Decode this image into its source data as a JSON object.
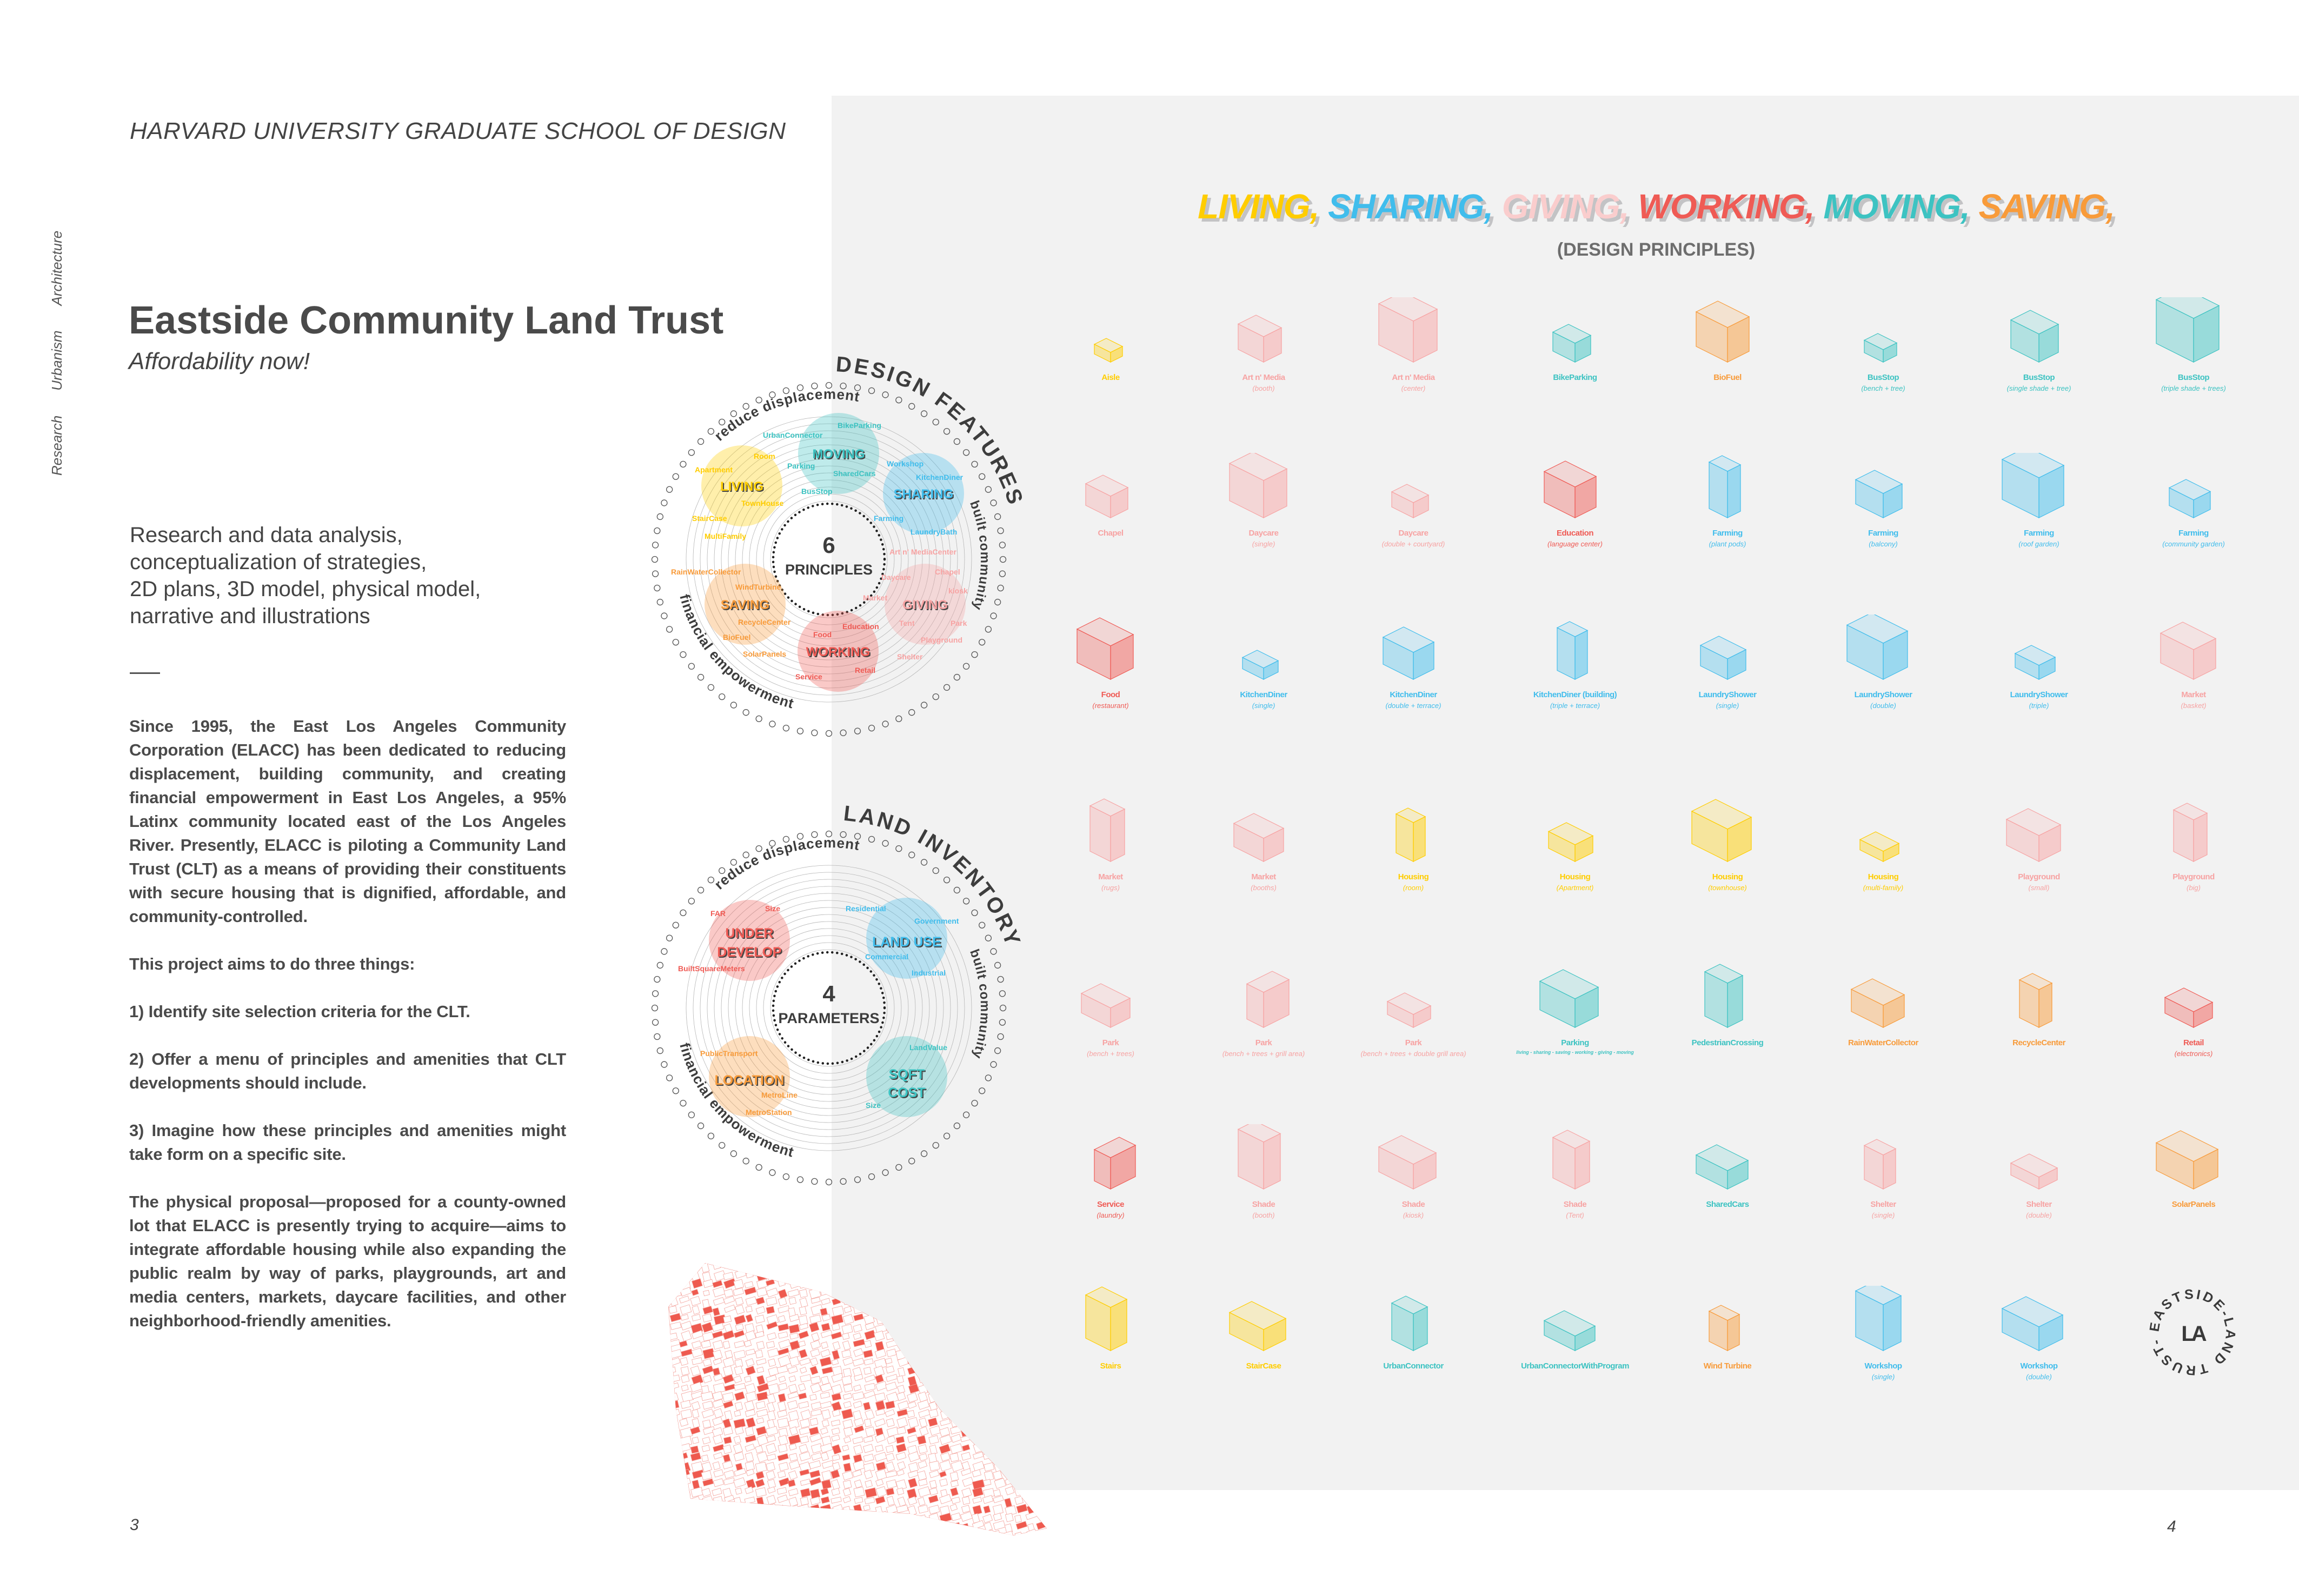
{
  "header": {
    "school": "HARVARD UNIVERSITY GRADUATE SCHOOL OF DESIGN"
  },
  "side_tags": [
    "Research",
    "Urbanism",
    "Architecture"
  ],
  "project": {
    "title": "Eastside Community Land Trust",
    "subtitle": "Affordability now!"
  },
  "services": [
    "Research and data analysis,",
    "conceptualization of strategies,",
    "2D plans, 3D model, physical model,",
    "narrative and illustrations"
  ],
  "body": [
    "Since 1995, the East Los Angeles Community Corporation (ELACC) has been dedicated to reducing displacement, building community, and creating financial empowerment in East Los Angeles, a 95% Latinx community located east of the Los Angeles River. Presently, ELACC is piloting a Community Land Trust (CLT) as a means of providing their constituents with secure housing that is dignified, affordable, and community-controlled.",
    "This project aims to do three things:",
    "1) Identify site selection criteria for the CLT.",
    "2) Offer a menu of principles and amenities that CLT developments should include.",
    "3) Imagine how these principles and amenities might take form on a specific site.",
    "The physical proposal—proposed for a county-owned lot that ELACC is presently trying to acquire—aims to integrate affordable housing while also expanding the public realm by way of parks, playgrounds, art and media centers, markets, daycare facilities, and other neighborhood-friendly amenities."
  ],
  "page_numbers": {
    "left": "3",
    "right": "4"
  },
  "colors": {
    "living": "#FFCD00",
    "sharing": "#41BDEC",
    "giving": "#F7A3A3",
    "giving_title": "#FACDCD",
    "working": "#EF5B55",
    "moving": "#3DC3C2",
    "saving": "#F89B3A",
    "text": "#4a4a4a",
    "panel": "#f2f2f2"
  },
  "principles_title": {
    "words": [
      "LIVING,",
      "SHARING,",
      "GIVING,",
      "WORKING,",
      "MOVING,",
      "SAVING,"
    ],
    "keys": [
      "living",
      "sharing",
      "giving_title",
      "working",
      "moving",
      "saving"
    ],
    "subtitle": "(DESIGN PRINCIPLES)"
  },
  "design_features": {
    "title": "DESIGN FEATURES",
    "count": "6",
    "count_label": "PRINCIPLES",
    "arcs": {
      "top": "reduce displacement",
      "right": "built community",
      "left": "financial empowerment"
    },
    "groups": [
      {
        "name": "MOVING",
        "color": "moving",
        "items": [
          "BikeParking",
          "UrbanConnector",
          "Parking",
          "SharedCars",
          "BusStop"
        ]
      },
      {
        "name": "LIVING",
        "color": "living",
        "items": [
          "Room",
          "Apartment",
          "TownHouse",
          "StairCase",
          "MultiFamily"
        ]
      },
      {
        "name": "SHARING",
        "color": "sharing",
        "items": [
          "Workshop",
          "KitchenDiner",
          "Farming",
          "LaundryBath"
        ]
      },
      {
        "name": "GIVING",
        "color": "giving",
        "items": [
          "Art n' MediaCenter",
          "Chapel",
          "Daycare",
          "kiosk",
          "Market",
          "Tent",
          "Park",
          "Playground",
          "Shelter"
        ]
      },
      {
        "name": "WORKING",
        "color": "working",
        "items": [
          "Education",
          "Food",
          "Retail",
          "Service"
        ]
      },
      {
        "name": "SAVING",
        "color": "saving",
        "items": [
          "RainWaterCollector",
          "WindTurbine",
          "RecycleCenter",
          "BioFuel",
          "SolarPanels"
        ]
      }
    ]
  },
  "land_inventory": {
    "title": "LAND INVENTORY",
    "count": "4",
    "count_label": "PARAMETERS",
    "arcs": {
      "top": "reduce displacement",
      "right": "built community",
      "left": "financial empowerment"
    },
    "groups": [
      {
        "name": "UNDER DEVELOP",
        "lines": [
          "UNDER",
          "DEVELOP"
        ],
        "color": "working",
        "items": [
          "FAR",
          "Size",
          "BuiltSquareMeters"
        ]
      },
      {
        "name": "LAND USE",
        "lines": [
          "LAND USE"
        ],
        "color": "sharing",
        "items": [
          "Residential",
          "Government",
          "Commercial",
          "Industrial"
        ]
      },
      {
        "name": "LOCATION",
        "lines": [
          "LOCATION"
        ],
        "color": "saving",
        "items": [
          "PublicTransport",
          "MetroLine",
          "MetroStation"
        ]
      },
      {
        "name": "SQFT COST",
        "lines": [
          "SQFT",
          "COST"
        ],
        "color": "moving",
        "items": [
          "LandValue",
          "Size"
        ]
      }
    ]
  },
  "grid": {
    "rows": [
      [
        {
          "label": "Aisle",
          "sub": "",
          "c": "living"
        },
        {
          "label": "Art n' Media",
          "sub": "(booth)",
          "c": "giving"
        },
        {
          "label": "Art n' Media",
          "sub": "(center)",
          "c": "giving"
        },
        {
          "label": "BikeParking",
          "sub": "",
          "c": "moving"
        },
        {
          "label": "BioFuel",
          "sub": "",
          "c": "saving"
        },
        {
          "label": "BusStop",
          "sub": "(bench + tree)",
          "c": "moving"
        },
        {
          "label": "BusStop",
          "sub": "(single shade + tree)",
          "c": "moving"
        },
        {
          "label": "BusStop",
          "sub": "(triple shade + trees)",
          "c": "moving"
        }
      ],
      [
        {
          "label": "Chapel",
          "sub": "",
          "c": "giving"
        },
        {
          "label": "Daycare",
          "sub": "(single)",
          "c": "giving"
        },
        {
          "label": "Daycare",
          "sub": "(double + courtyard)",
          "c": "giving"
        },
        {
          "label": "Education",
          "sub": "(language center)",
          "c": "working"
        },
        {
          "label": "Farming",
          "sub": "(plant pods)",
          "c": "sharing"
        },
        {
          "label": "Farming",
          "sub": "(balcony)",
          "c": "sharing"
        },
        {
          "label": "Farming",
          "sub": "(roof garden)",
          "c": "sharing"
        },
        {
          "label": "Farming",
          "sub": "(community garden)",
          "c": "sharing"
        }
      ],
      [
        {
          "label": "Food",
          "sub": "(restaurant)",
          "c": "working"
        },
        {
          "label": "KitchenDiner",
          "sub": "(single)",
          "c": "sharing"
        },
        {
          "label": "KitchenDiner",
          "sub": "(double + terrace)",
          "c": "sharing"
        },
        {
          "label": "KitchenDiner (building)",
          "sub": "(triple + terrace)",
          "c": "sharing"
        },
        {
          "label": "LaundryShower",
          "sub": "(single)",
          "c": "sharing"
        },
        {
          "label": "LaundryShower",
          "sub": "(double)",
          "c": "sharing"
        },
        {
          "label": "LaundryShower",
          "sub": "(triple)",
          "c": "sharing"
        },
        {
          "label": "Market",
          "sub": "(basket)",
          "c": "giving"
        }
      ],
      [
        {
          "label": "Market",
          "sub": "(rugs)",
          "c": "giving"
        },
        {
          "label": "Market",
          "sub": "(booths)",
          "c": "giving"
        },
        {
          "label": "Housing",
          "sub": "(room)",
          "c": "living"
        },
        {
          "label": "Housing",
          "sub": "(Apartment)",
          "c": "living"
        },
        {
          "label": "Housing",
          "sub": "(townhouse)",
          "c": "living"
        },
        {
          "label": "Housing",
          "sub": "(multi-family)",
          "c": "living"
        },
        {
          "label": "Playground",
          "sub": "(small)",
          "c": "giving"
        },
        {
          "label": "Playground",
          "sub": "(big)",
          "c": "giving"
        }
      ],
      [
        {
          "label": "Park",
          "sub": "(bench + trees)",
          "c": "giving"
        },
        {
          "label": "Park",
          "sub": "(bench + trees + grill area)",
          "c": "giving"
        },
        {
          "label": "Park",
          "sub": "(bench + trees + double grill area)",
          "c": "giving"
        },
        {
          "label": "Parking",
          "sub": "living - sharing - saving - working - giving - moving",
          "c": "moving"
        },
        {
          "label": "PedestrianCrossing",
          "sub": "",
          "c": "moving"
        },
        {
          "label": "RainWaterCollector",
          "sub": "",
          "c": "saving"
        },
        {
          "label": "RecycleCenter",
          "sub": "",
          "c": "saving"
        },
        {
          "label": "Retail",
          "sub": "(electronics)",
          "c": "working"
        }
      ],
      [
        {
          "label": "Service",
          "sub": "(laundry)",
          "c": "working"
        },
        {
          "label": "Shade",
          "sub": "(booth)",
          "c": "giving"
        },
        {
          "label": "Shade",
          "sub": "(kiosk)",
          "c": "giving"
        },
        {
          "label": "Shade",
          "sub": "(Tent)",
          "c": "giving"
        },
        {
          "label": "SharedCars",
          "sub": "",
          "c": "moving"
        },
        {
          "label": "Shelter",
          "sub": "(single)",
          "c": "giving"
        },
        {
          "label": "Shelter",
          "sub": "(double)",
          "c": "giving"
        },
        {
          "label": "SolarPanels",
          "sub": "",
          "c": "saving"
        }
      ],
      [
        {
          "label": "Stairs",
          "sub": "",
          "c": "living"
        },
        {
          "label": "StairCase",
          "sub": "",
          "c": "living"
        },
        {
          "label": "UrbanConnector",
          "sub": "",
          "c": "moving"
        },
        {
          "label": "UrbanConnectorWithProgram",
          "sub": "",
          "c": "moving"
        },
        {
          "label": "Wind Turbine",
          "sub": "",
          "c": "saving"
        },
        {
          "label": "Workshop",
          "sub": "(single)",
          "c": "sharing"
        },
        {
          "label": "Workshop",
          "sub": "(double)",
          "c": "sharing"
        }
      ]
    ]
  },
  "logo": {
    "ring_text": "EASTSIDE-LAND TRUST-",
    "mark": "LA"
  }
}
